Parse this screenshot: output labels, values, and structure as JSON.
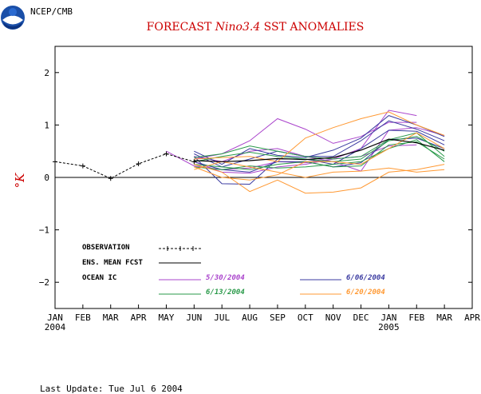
{
  "header": {
    "agency": "NCEP/CMB",
    "title_prefix": "FORECAST ",
    "title_italic": "Nino3.4",
    "title_suffix": " SST ANOMALIES"
  },
  "footer": {
    "last_update": "Last Update: Tue Jul 6 2004"
  },
  "colors": {
    "title": "#cc0000",
    "ic_5_30": "#aa44cc",
    "ic_6_06": "#3a3aa0",
    "ic_6_13": "#2a9a4a",
    "ic_6_20": "#ff9933",
    "observation": "#000000",
    "ens_mean": "#000000"
  },
  "chart_data": {
    "type": "line",
    "title": "FORECAST Nino3.4 SST ANOMALIES",
    "ylabel": "°K",
    "ylim": [
      -2.5,
      2.5
    ],
    "yticks": [
      -2,
      -1,
      0,
      1,
      2
    ],
    "x_ticks": [
      "JAN",
      "FEB",
      "MAR",
      "APR",
      "MAY",
      "JUN",
      "JUL",
      "AUG",
      "SEP",
      "OCT",
      "NOV",
      "DEC",
      "JAN",
      "FEB",
      "MAR",
      "APR"
    ],
    "x_year_labels": [
      {
        "at": "JAN",
        "index": 0,
        "text": "2004"
      },
      {
        "at": "JAN",
        "index": 12,
        "text": "2005"
      }
    ],
    "zero_line": true,
    "legend": {
      "observation": "OBSERVATION",
      "ens_mean": "ENS. MEAN FCST",
      "ocean_ic": "OCEAN IC",
      "ic_dates": [
        "5/30/2004",
        "6/06/2004",
        "6/13/2004",
        "6/20/2004"
      ]
    },
    "observation": {
      "x": [
        0,
        1,
        2,
        3,
        4,
        5
      ],
      "y": [
        0.3,
        0.22,
        -0.02,
        0.26,
        0.45,
        0.3
      ]
    },
    "ensemble_mean": {
      "x": [
        5,
        6,
        7,
        8,
        9,
        10,
        11,
        12,
        13,
        14
      ],
      "y": [
        0.32,
        0.3,
        0.32,
        0.36,
        0.34,
        0.38,
        0.52,
        0.73,
        0.66,
        0.52
      ]
    },
    "members": [
      {
        "ic": "5/30/2004",
        "x": [
          4,
          5,
          6,
          7,
          8,
          9,
          10,
          11,
          12,
          13
        ],
        "y": [
          0.5,
          0.22,
          0.15,
          0.18,
          0.3,
          0.28,
          0.35,
          0.55,
          1.28,
          1.18
        ]
      },
      {
        "ic": "5/30/2004",
        "x": [
          5,
          6,
          7,
          8,
          9,
          10,
          11,
          12,
          13
        ],
        "y": [
          0.35,
          0.45,
          0.7,
          1.12,
          0.92,
          0.65,
          0.78,
          1.05,
          1.05
        ]
      },
      {
        "ic": "5/30/2004",
        "x": [
          5,
          6,
          7,
          8,
          9,
          10,
          11,
          12,
          13
        ],
        "y": [
          0.3,
          0.1,
          0.08,
          0.2,
          0.25,
          0.35,
          0.4,
          0.6,
          0.62
        ]
      },
      {
        "ic": "5/30/2004",
        "x": [
          5,
          6,
          7,
          8,
          9,
          10,
          11,
          12,
          13,
          14
        ],
        "y": [
          0.4,
          0.3,
          0.5,
          0.55,
          0.4,
          0.3,
          0.12,
          0.9,
          0.95,
          0.8
        ]
      },
      {
        "ic": "6/06/2004",
        "x": [
          5,
          6,
          7,
          8,
          9,
          10,
          11,
          12,
          13,
          14
        ],
        "y": [
          0.5,
          0.25,
          0.55,
          0.42,
          0.38,
          0.52,
          0.75,
          1.18,
          1.0,
          0.78
        ]
      },
      {
        "ic": "6/06/2004",
        "x": [
          5,
          6,
          7,
          8,
          9,
          10,
          11,
          12,
          13,
          14
        ],
        "y": [
          0.45,
          0.2,
          0.35,
          0.5,
          0.4,
          0.4,
          0.7,
          1.08,
          0.92,
          0.7
        ]
      },
      {
        "ic": "6/06/2004",
        "x": [
          5,
          6,
          7,
          8,
          9,
          10,
          11,
          12,
          13,
          14
        ],
        "y": [
          0.4,
          -0.12,
          -0.13,
          0.35,
          0.35,
          0.25,
          0.55,
          0.9,
          0.88,
          0.62
        ]
      },
      {
        "ic": "6/06/2004",
        "x": [
          5,
          6,
          7,
          8,
          9,
          10,
          11,
          12,
          13,
          14
        ],
        "y": [
          0.3,
          0.15,
          0.1,
          0.3,
          0.3,
          0.2,
          0.28,
          0.72,
          0.75,
          0.55
        ]
      },
      {
        "ic": "6/13/2004",
        "x": [
          5,
          6,
          7,
          8,
          9,
          10,
          11,
          12,
          13,
          14
        ],
        "y": [
          0.38,
          0.45,
          0.6,
          0.5,
          0.4,
          0.35,
          0.4,
          0.72,
          0.85,
          0.4
        ]
      },
      {
        "ic": "6/13/2004",
        "x": [
          5,
          6,
          7,
          8,
          9,
          10,
          11,
          12,
          13,
          14
        ],
        "y": [
          0.3,
          0.4,
          0.48,
          0.4,
          0.35,
          0.3,
          0.35,
          0.7,
          0.78,
          0.5
        ]
      },
      {
        "ic": "6/13/2004",
        "x": [
          5,
          6,
          7,
          8,
          9,
          10,
          11,
          12,
          13,
          14
        ],
        "y": [
          0.25,
          0.2,
          0.15,
          0.25,
          0.3,
          0.2,
          0.22,
          0.62,
          0.68,
          0.35
        ]
      },
      {
        "ic": "6/13/2004",
        "x": [
          5,
          6,
          7,
          8,
          9,
          10,
          11,
          12,
          13,
          14
        ],
        "y": [
          0.2,
          0.15,
          0.22,
          0.18,
          0.2,
          0.25,
          0.3,
          0.55,
          0.72,
          0.3
        ]
      },
      {
        "ic": "6/20/2004",
        "x": [
          5,
          6,
          7,
          8,
          9,
          10,
          11,
          12,
          13,
          14
        ],
        "y": [
          0.35,
          0.38,
          0.4,
          0.3,
          0.75,
          0.95,
          1.12,
          1.25,
          1.0,
          0.8
        ]
      },
      {
        "ic": "6/20/2004",
        "x": [
          5,
          6,
          7,
          8,
          9,
          10,
          11,
          12,
          13,
          14
        ],
        "y": [
          0.25,
          0.1,
          -0.27,
          -0.05,
          -0.3,
          -0.28,
          -0.2,
          0.1,
          0.15,
          0.25
        ]
      },
      {
        "ic": "6/20/2004",
        "x": [
          5,
          6,
          7,
          8,
          9,
          10,
          11,
          12,
          13,
          14
        ],
        "y": [
          0.2,
          0.0,
          -0.05,
          0.05,
          0.3,
          0.3,
          0.25,
          0.55,
          0.85,
          0.55
        ]
      },
      {
        "ic": "6/20/2004",
        "x": [
          5,
          6,
          7,
          8,
          9,
          10,
          11,
          12,
          13,
          14
        ],
        "y": [
          0.15,
          0.3,
          0.2,
          0.1,
          0.0,
          0.1,
          0.12,
          0.18,
          0.1,
          0.15
        ]
      }
    ]
  }
}
